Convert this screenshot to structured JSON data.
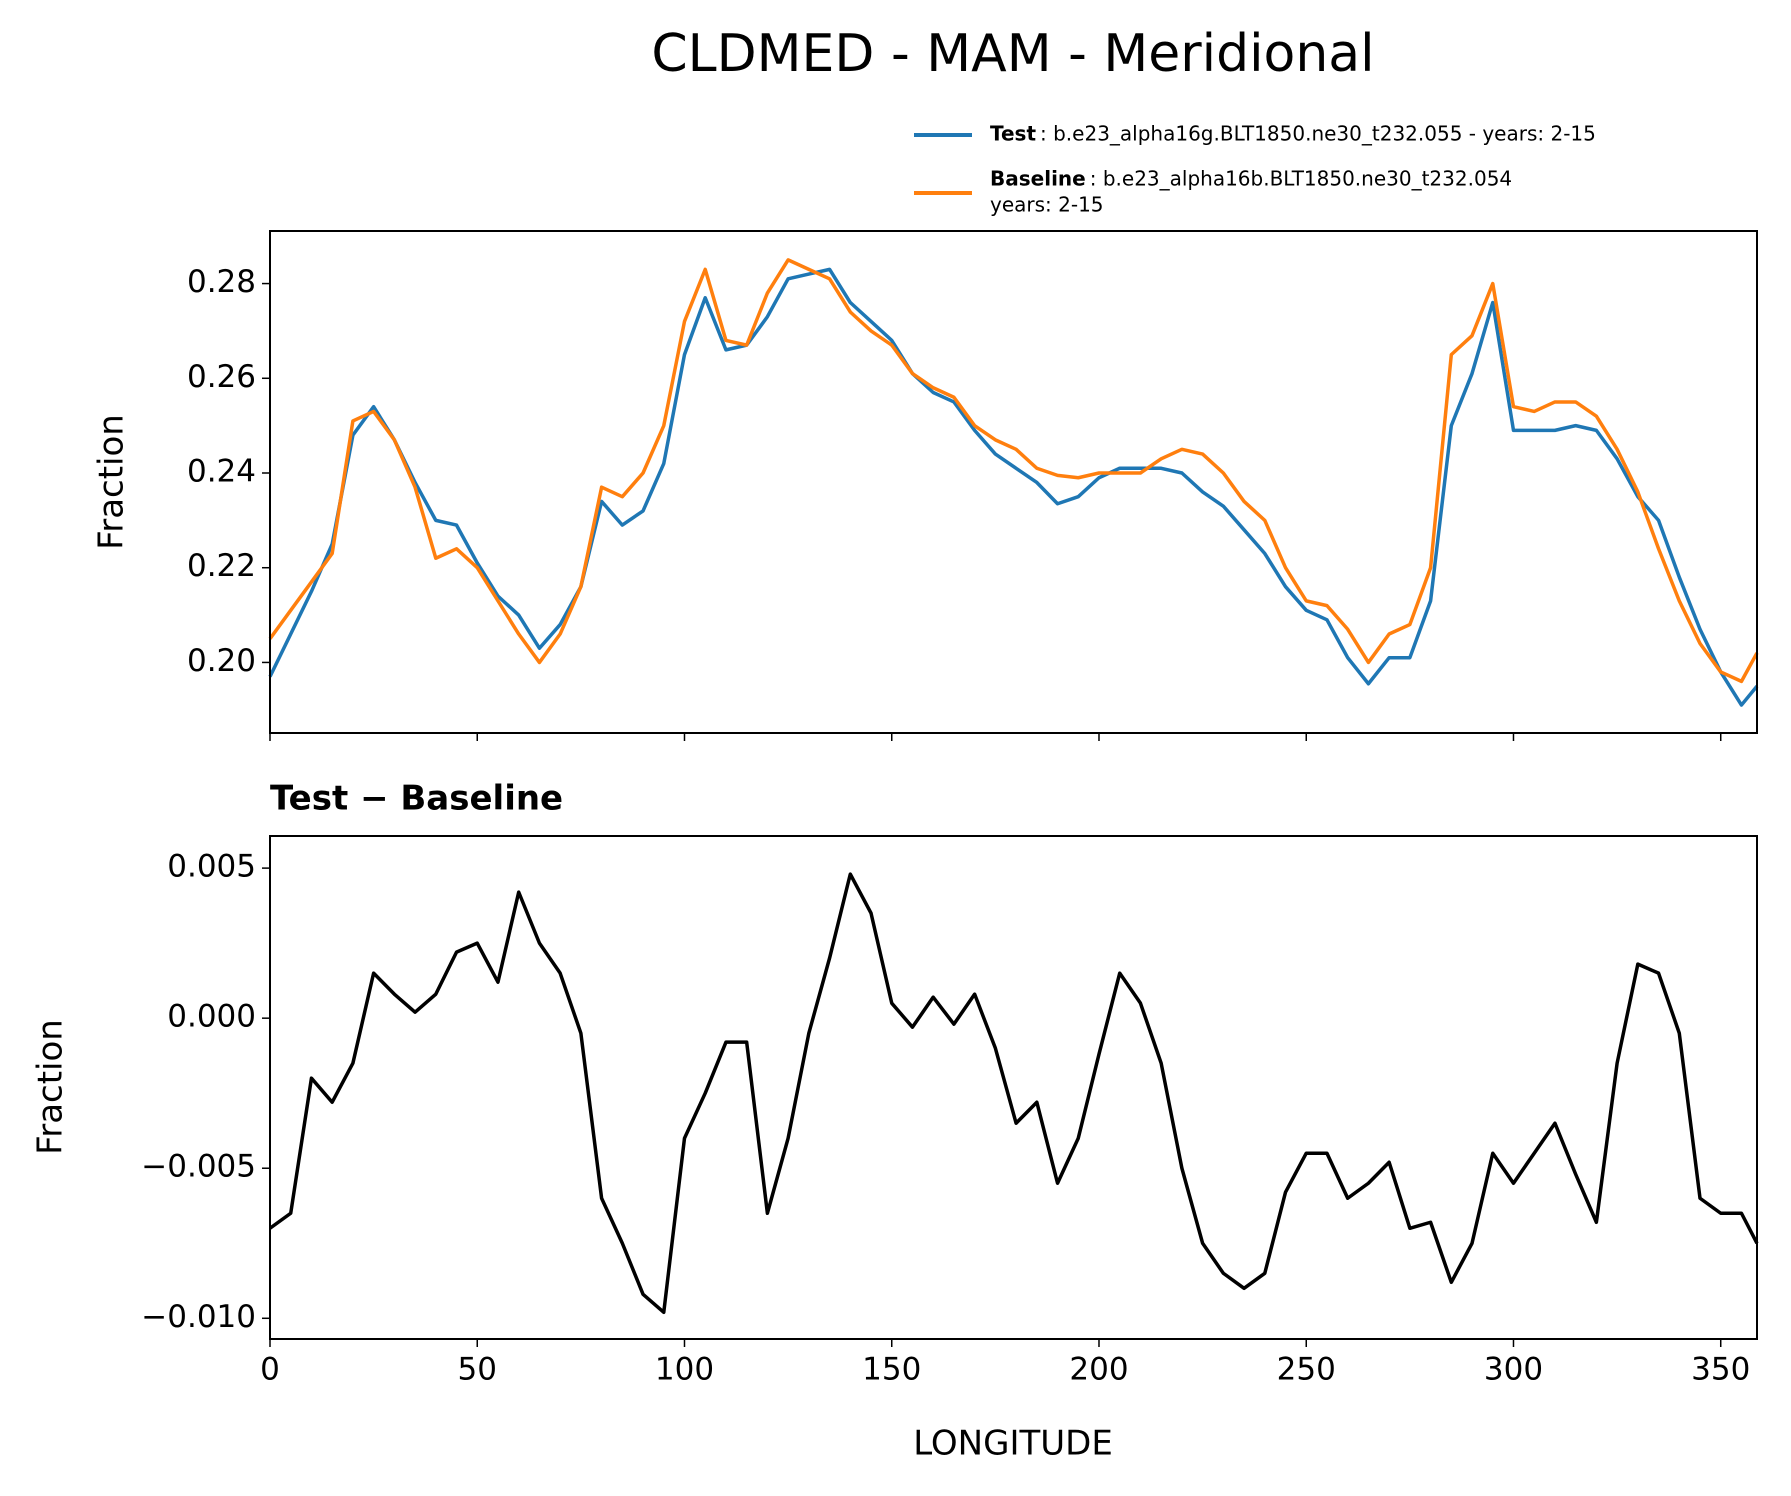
{
  "chart_data": [
    {
      "type": "line",
      "title": "CLDMED - MAM - Meridional",
      "ylabel": "Fraction",
      "x": [
        0,
        5,
        10,
        15,
        20,
        25,
        30,
        35,
        40,
        45,
        50,
        55,
        60,
        65,
        70,
        75,
        80,
        85,
        90,
        95,
        100,
        105,
        110,
        115,
        120,
        125,
        130,
        135,
        140,
        145,
        150,
        155,
        160,
        165,
        170,
        175,
        180,
        185,
        190,
        195,
        200,
        205,
        210,
        215,
        220,
        225,
        230,
        235,
        240,
        245,
        250,
        255,
        260,
        265,
        270,
        275,
        280,
        285,
        290,
        295,
        300,
        305,
        310,
        315,
        320,
        325,
        330,
        335,
        340,
        345,
        350,
        355,
        358.75
      ],
      "series": [
        {
          "name": "Test",
          "description": [
            ": b.e23_alpha16g.BLT1850.ne30_t232.055 - years: 2-15"
          ],
          "color": "#1f77b4",
          "values": [
            0.197,
            0.206,
            0.215,
            0.225,
            0.248,
            0.254,
            0.247,
            0.238,
            0.23,
            0.229,
            0.221,
            0.214,
            0.21,
            0.203,
            0.208,
            0.216,
            0.234,
            0.229,
            0.232,
            0.242,
            0.265,
            0.277,
            0.266,
            0.267,
            0.273,
            0.281,
            0.282,
            0.283,
            0.276,
            0.272,
            0.268,
            0.261,
            0.257,
            0.255,
            0.249,
            0.244,
            0.241,
            0.238,
            0.2335,
            0.235,
            0.239,
            0.241,
            0.241,
            0.241,
            0.24,
            0.236,
            0.233,
            0.228,
            0.223,
            0.216,
            0.211,
            0.209,
            0.201,
            0.1955,
            0.201,
            0.201,
            0.213,
            0.25,
            0.261,
            0.276,
            0.249,
            0.249,
            0.249,
            0.25,
            0.249,
            0.243,
            0.235,
            0.23,
            0.218,
            0.207,
            0.198,
            0.191,
            0.195
          ]
        },
        {
          "name": "Baseline",
          "description": [
            ": b.e23_alpha16b.BLT1850.ne30_t232.054",
            "years: 2-15"
          ],
          "color": "#ff7f0e",
          "values": [
            0.205,
            0.211,
            0.217,
            0.223,
            0.251,
            0.253,
            0.247,
            0.237,
            0.222,
            0.224,
            0.22,
            0.213,
            0.206,
            0.2,
            0.206,
            0.216,
            0.237,
            0.235,
            0.24,
            0.25,
            0.272,
            0.283,
            0.268,
            0.267,
            0.278,
            0.285,
            0.283,
            0.281,
            0.274,
            0.27,
            0.267,
            0.261,
            0.258,
            0.256,
            0.25,
            0.247,
            0.245,
            0.241,
            0.2395,
            0.239,
            0.24,
            0.24,
            0.24,
            0.243,
            0.245,
            0.244,
            0.24,
            0.234,
            0.23,
            0.22,
            0.213,
            0.212,
            0.207,
            0.2,
            0.206,
            0.208,
            0.22,
            0.265,
            0.269,
            0.28,
            0.254,
            0.253,
            0.255,
            0.255,
            0.252,
            0.245,
            0.236,
            0.224,
            0.213,
            0.204,
            0.198,
            0.196,
            0.202
          ]
        }
      ],
      "xlim": [
        0,
        358.75
      ],
      "ylim": [
        0.1851,
        0.2911
      ],
      "yticks": [
        {
          "value": 0.2,
          "label": "0.20"
        },
        0.22,
        0.24,
        0.26,
        0.28
      ]
    },
    {
      "type": "line",
      "title": "Test − Baseline",
      "ylabel": "Fraction",
      "xlabel": "LONGITUDE",
      "x": [
        0,
        5,
        10,
        15,
        20,
        25,
        30,
        35,
        40,
        45,
        50,
        55,
        60,
        65,
        70,
        75,
        80,
        85,
        90,
        95,
        100,
        105,
        110,
        115,
        120,
        125,
        130,
        135,
        140,
        145,
        150,
        155,
        160,
        165,
        170,
        175,
        180,
        185,
        190,
        195,
        200,
        205,
        210,
        215,
        220,
        225,
        230,
        235,
        240,
        245,
        250,
        255,
        260,
        265,
        270,
        275,
        280,
        285,
        290,
        295,
        300,
        305,
        310,
        315,
        320,
        325,
        330,
        335,
        340,
        345,
        350,
        355,
        358.75
      ],
      "series": [
        {
          "color": "#000000",
          "values": [
            -0.007,
            -0.0065,
            -0.002,
            -0.0028,
            -0.0015,
            0.0015,
            0.0008,
            0.0002,
            0.0008,
            0.0022,
            0.0025,
            0.0012,
            0.0042,
            0.0025,
            0.0015,
            -0.0005,
            -0.006,
            -0.0075,
            -0.0092,
            -0.0098,
            -0.004,
            -0.0025,
            -0.0008,
            -0.0008,
            -0.0065,
            -0.004,
            -0.0005,
            0.002,
            0.0048,
            0.0035,
            0.0005,
            -0.0003,
            0.0007,
            -0.0002,
            0.0008,
            -0.001,
            -0.0035,
            -0.0028,
            -0.0055,
            -0.004,
            -0.0012,
            0.0015,
            0.0005,
            -0.0015,
            -0.005,
            -0.0075,
            -0.0085,
            -0.009,
            -0.0085,
            -0.0058,
            -0.0045,
            -0.0045,
            -0.006,
            -0.0055,
            -0.0048,
            -0.007,
            -0.0068,
            -0.0088,
            -0.0075,
            -0.0045,
            -0.0055,
            -0.0045,
            -0.0035,
            -0.0052,
            -0.0068,
            -0.0015,
            0.0018,
            0.0015,
            -0.0005,
            -0.006,
            -0.0065,
            -0.0065,
            -0.0075
          ]
        }
      ],
      "xlim": [
        0,
        358.75
      ],
      "ylim": [
        -0.01069,
        0.00607
      ],
      "xticks": [
        0,
        50,
        100,
        150,
        200,
        250,
        300,
        350
      ],
      "yticks": [
        {
          "value": -0.01,
          "label": "−0.010"
        },
        {
          "value": -0.005,
          "label": "−0.005"
        },
        {
          "value": 0,
          "label": "0.000"
        },
        0.005
      ]
    }
  ]
}
